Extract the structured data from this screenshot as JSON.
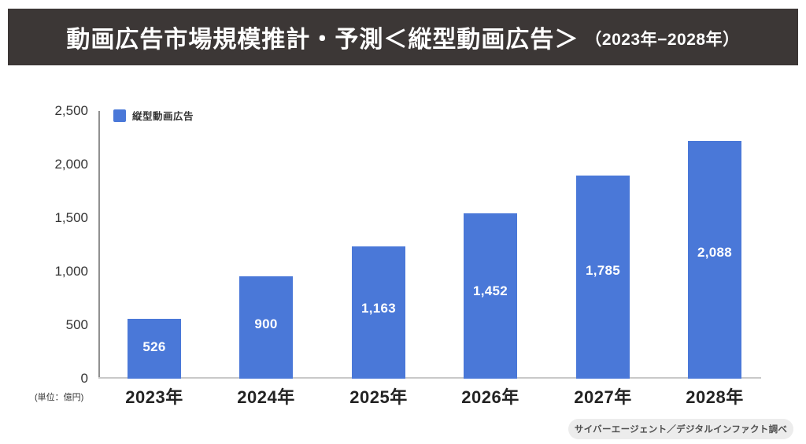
{
  "header": {
    "title_main": "動画広告市場規模推計・予測＜縦型動画広告＞",
    "title_period": "（2023年−2028年）",
    "bg_color": "#3C3736"
  },
  "legend": {
    "label": "縦型動画広告",
    "swatch_color": "#4A78D8"
  },
  "unit_note": "(単位：億円)",
  "source_note": "サイバーエージェント／デジタルインファクト調べ",
  "chart_data": {
    "type": "bar",
    "title": "動画広告市場規模推計・予測＜縦型動画広告＞（2023年−2028年）",
    "categories": [
      "2023年",
      "2024年",
      "2025年",
      "2026年",
      "2027年",
      "2028年"
    ],
    "series": [
      {
        "name": "縦型動画広告",
        "values": [
          526,
          900,
          1163,
          1452,
          1785,
          2088
        ],
        "value_labels": [
          "526",
          "900",
          "1,163",
          "1,452",
          "1,785",
          "2,088"
        ],
        "color": "#4A78D8"
      }
    ],
    "xlabel": "",
    "ylabel": "(単位：億円)",
    "ylim": [
      0,
      2500
    ],
    "yticks": [
      "0",
      "500",
      "1,000",
      "1,500",
      "2,000",
      "2,500"
    ],
    "grid": false,
    "legend_position": "top-left",
    "value_label_color": "#ffffff"
  }
}
